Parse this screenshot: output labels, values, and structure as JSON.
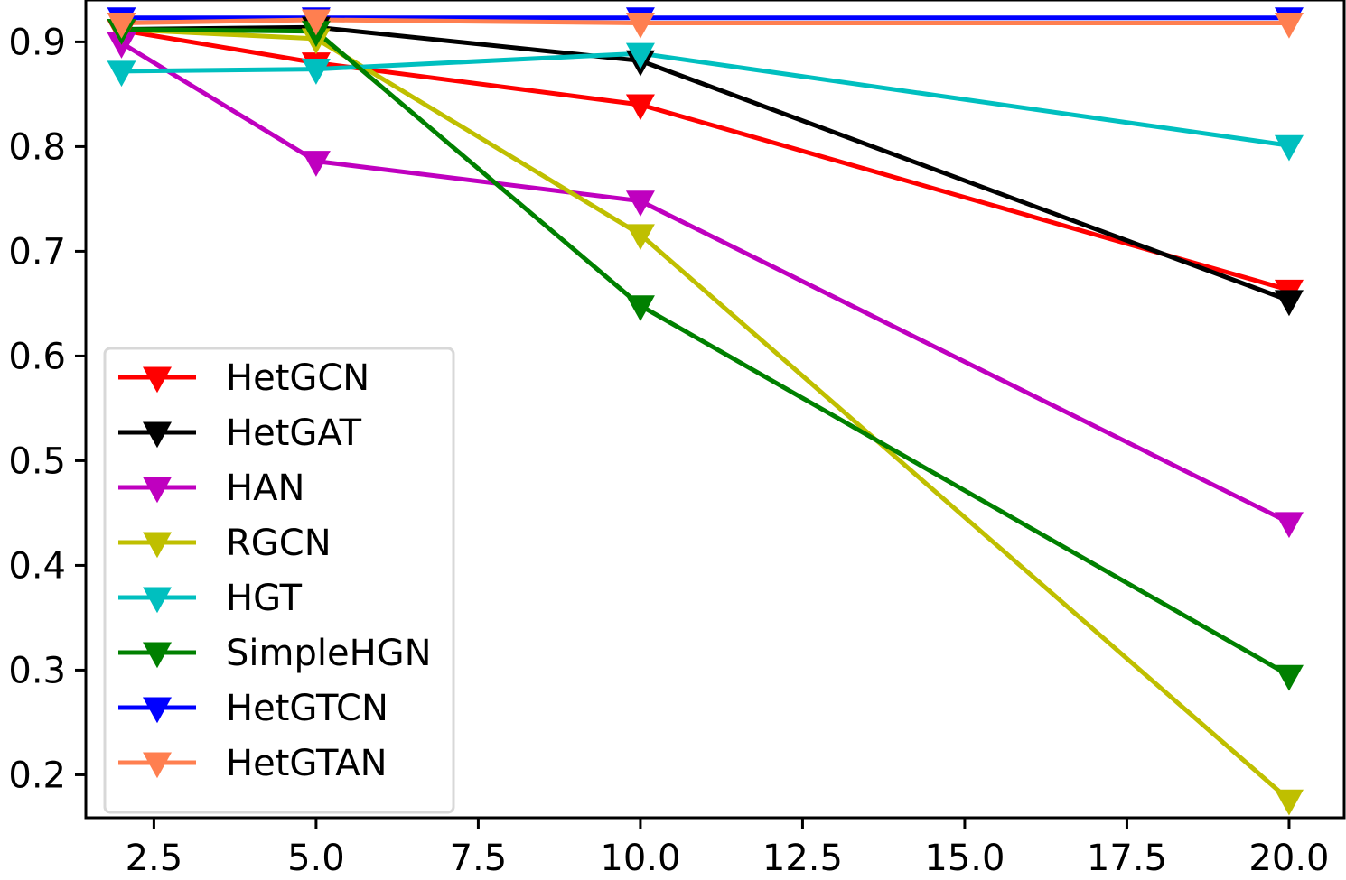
{
  "chart_data": {
    "type": "line",
    "title": "",
    "xlabel": "",
    "ylabel": "",
    "xlim": [
      1.45,
      20.85
    ],
    "ylim": [
      0.159,
      0.94
    ],
    "x_ticks": [
      2.5,
      5.0,
      7.5,
      10.0,
      12.5,
      15.0,
      17.5,
      20.0
    ],
    "x_tick_labels": [
      "2.5",
      "5.0",
      "7.5",
      "10.0",
      "12.5",
      "15.0",
      "17.5",
      "20.0"
    ],
    "y_ticks": [
      0.2,
      0.3,
      0.4,
      0.5,
      0.6,
      0.7,
      0.8,
      0.9
    ],
    "y_tick_labels": [
      "0.2",
      "0.3",
      "0.4",
      "0.5",
      "0.6",
      "0.7",
      "0.8",
      "0.9"
    ],
    "grid": false,
    "legend_position": "lower-left",
    "marker": "triangle-down",
    "x": [
      2,
      5,
      10,
      20
    ],
    "series": [
      {
        "name": "HetGCN",
        "color": "#ff0000",
        "values": [
          0.911,
          0.88,
          0.84,
          0.663
        ]
      },
      {
        "name": "HetGAT",
        "color": "#000000",
        "values": [
          0.912,
          0.914,
          0.882,
          0.653
        ]
      },
      {
        "name": "HAN",
        "color": "#bf00bf",
        "values": [
          0.899,
          0.786,
          0.748,
          0.441
        ]
      },
      {
        "name": "RGCN",
        "color": "#bfbf00",
        "values": [
          0.912,
          0.903,
          0.716,
          0.176
        ]
      },
      {
        "name": "HGT",
        "color": "#00bfbf",
        "values": [
          0.872,
          0.874,
          0.889,
          0.801
        ]
      },
      {
        "name": "SimpleHGN",
        "color": "#008000",
        "values": [
          0.912,
          0.91,
          0.648,
          0.295
        ]
      },
      {
        "name": "HetGTCN",
        "color": "#0000ff",
        "values": [
          0.923,
          0.923,
          0.923,
          0.923
        ]
      },
      {
        "name": "HetGTAN",
        "color": "#ff7f50",
        "values": [
          0.918,
          0.921,
          0.918,
          0.918
        ]
      }
    ]
  }
}
